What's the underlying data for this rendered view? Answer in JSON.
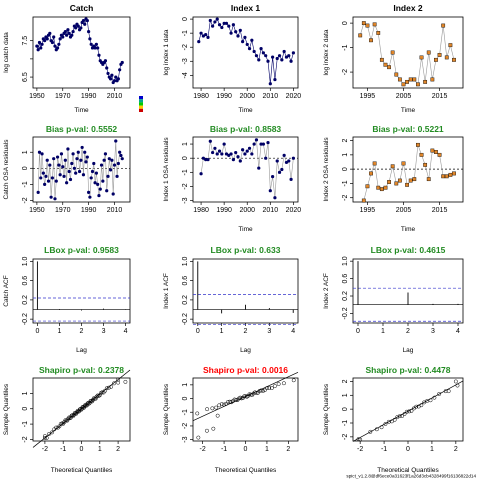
{
  "footer": "spict_v1.2.8@df6ece0a31623f1a26d3cb4328499f16136822d14",
  "colors": {
    "title_green": "#228b22",
    "title_red": "#ff0000",
    "navy": "#000066",
    "orange": "#e0862a",
    "ref_blue": "#3333cc",
    "line_grey": "#999999"
  },
  "chart_data": [
    {
      "type": "line",
      "title": "Catch",
      "title_color": "black",
      "xlabel": "Time",
      "ylabel": "log catch data",
      "xlim": [
        1947,
        2022
      ],
      "ylim": [
        6.2,
        8.15
      ],
      "xticks": [
        1950,
        1970,
        1990,
        2010
      ],
      "yticks": [
        6.5,
        7.0,
        7.5
      ],
      "ytick_labels": [
        "6.5",
        "",
        "7.5"
      ],
      "x": [
        1950,
        1951,
        1952,
        1953,
        1954,
        1955,
        1956,
        1957,
        1958,
        1959,
        1960,
        1961,
        1962,
        1963,
        1964,
        1965,
        1966,
        1967,
        1968,
        1969,
        1970,
        1971,
        1972,
        1973,
        1974,
        1975,
        1976,
        1977,
        1978,
        1979,
        1980,
        1981,
        1982,
        1983,
        1984,
        1985,
        1986,
        1987,
        1988,
        1989,
        1990,
        1991,
        1992,
        1993,
        1994,
        1995,
        1996,
        1997,
        1998,
        1999,
        2000,
        2001,
        2002,
        2003,
        2004,
        2005,
        2006,
        2007,
        2008,
        2009,
        2010,
        2011,
        2012,
        2013,
        2014,
        2015,
        2016
      ],
      "y": [
        7.35,
        7.25,
        7.45,
        7.3,
        7.4,
        7.55,
        7.5,
        7.6,
        7.55,
        7.65,
        7.7,
        7.5,
        7.45,
        7.6,
        7.35,
        7.25,
        7.3,
        7.4,
        7.55,
        7.65,
        7.6,
        7.7,
        7.75,
        7.65,
        7.8,
        7.7,
        7.6,
        7.65,
        7.75,
        7.9,
        7.85,
        7.95,
        7.9,
        7.8,
        7.85,
        8.0,
        8.05,
        7.95,
        8.1,
        8.05,
        7.75,
        7.55,
        7.4,
        7.3,
        7.35,
        7.3,
        7.4,
        7.3,
        7.1,
        6.95,
        6.9,
        6.85,
        6.9,
        6.95,
        6.75,
        6.6,
        6.5,
        6.45,
        6.55,
        6.35,
        6.4,
        6.5,
        6.4,
        6.45,
        6.7,
        6.85,
        6.9
      ],
      "style": "navy-line-points",
      "legend_key": true
    },
    {
      "type": "line",
      "title": "Index 1",
      "title_color": "black",
      "xlabel": "Time",
      "ylabel": "log index 1 data",
      "xlim": [
        1976.5,
        2022
      ],
      "ylim": [
        -4.9,
        0.15
      ],
      "xticks": [
        1980,
        1990,
        2000,
        2010,
        2020
      ],
      "yticks": [
        0,
        -1,
        -2,
        -3,
        -4
      ],
      "ytick_labels": [
        "0",
        "-1",
        "-2",
        "-3",
        "-4"
      ],
      "x": [
        1979,
        1980,
        1981,
        1982,
        1983,
        1984,
        1985,
        1986,
        1987,
        1988,
        1989,
        1990,
        1991,
        1992,
        1993,
        1994,
        1995,
        1996,
        1997,
        1998,
        1999,
        2000,
        2001,
        2002,
        2003,
        2004,
        2005,
        2006,
        2007,
        2008,
        2009,
        2010,
        2011,
        2012,
        2013,
        2014,
        2015,
        2016,
        2017,
        2018,
        2019,
        2020
      ],
      "y": [
        -1.6,
        -1.0,
        -1.2,
        -1.1,
        -1.3,
        -0.1,
        -0.5,
        -0.2,
        0.0,
        -0.4,
        -0.6,
        -0.3,
        -0.3,
        -0.5,
        -1.0,
        -0.4,
        -0.9,
        -1.2,
        -0.8,
        -1.6,
        -1.3,
        -1.8,
        -2.1,
        -1.5,
        -2.3,
        -2.6,
        -2.9,
        -2.1,
        -2.4,
        -2.6,
        -3.0,
        -4.6,
        -2.7,
        -4.3,
        -2.8,
        -2.6,
        -2.9,
        -2.3,
        -2.7,
        -2.6,
        -3.0,
        -2.4
      ],
      "style": "navy-line-points",
      "legend_key": false
    },
    {
      "type": "line",
      "title": "Index 2",
      "title_color": "black",
      "xlabel": "Time",
      "ylabel": "log index 2 data",
      "xlim": [
        1991,
        2021.5
      ],
      "ylim": [
        -2.65,
        0.25
      ],
      "xticks": [
        1995,
        2005,
        2015
      ],
      "yticks": [
        0,
        -1,
        -2
      ],
      "ytick_labels": [
        "0",
        "-1",
        "-2"
      ],
      "x": [
        1993,
        1994,
        1995,
        1996,
        1997,
        1998,
        1999,
        2000,
        2001,
        2002,
        2003,
        2004,
        2005,
        2006,
        2007,
        2008,
        2009,
        2010,
        2011,
        2012,
        2013,
        2014,
        2015,
        2016,
        2017,
        2018,
        2019
      ],
      "y": [
        -0.5,
        0.0,
        -0.1,
        -0.7,
        -0.05,
        -0.4,
        -1.5,
        -1.7,
        -1.8,
        -1.2,
        -2.1,
        -2.3,
        -2.5,
        -2.4,
        -2.3,
        -2.3,
        -2.5,
        -1.4,
        -2.4,
        -1.2,
        -2.3,
        -1.5,
        -1.3,
        -0.1,
        -1.4,
        -0.9,
        -1.5
      ],
      "style": "orange-squares-grey-line",
      "legend_key": false
    },
    {
      "type": "scatter",
      "title": "Bias p-val: 0.5552",
      "title_color": "green",
      "xlabel": "",
      "ylabel": "Catch OSA residuals",
      "xlim": [
        1947,
        2022
      ],
      "ylim": [
        -2.1,
        1.95
      ],
      "xticks": [
        1950,
        1970,
        1990,
        2010
      ],
      "yticks": [
        1,
        0,
        -1,
        -2
      ],
      "ytick_labels": [
        "1",
        "0",
        "-1",
        "-2"
      ],
      "x": [
        1951,
        1952,
        1953,
        1954,
        1955,
        1956,
        1957,
        1958,
        1959,
        1960,
        1961,
        1962,
        1963,
        1964,
        1965,
        1966,
        1967,
        1968,
        1969,
        1970,
        1971,
        1972,
        1973,
        1974,
        1975,
        1976,
        1977,
        1978,
        1979,
        1980,
        1981,
        1982,
        1983,
        1984,
        1985,
        1986,
        1987,
        1988,
        1989,
        1990,
        1991,
        1992,
        1993,
        1994,
        1995,
        1996,
        1997,
        1998,
        1999,
        2000,
        2001,
        2002,
        2003,
        2004,
        2005,
        2006,
        2007,
        2008,
        2009,
        2010,
        2011,
        2012,
        2013,
        2014,
        2015,
        2016
      ],
      "y": [
        -1.5,
        1.0,
        -0.6,
        0.9,
        -0.3,
        -1.0,
        -0.5,
        0.5,
        -0.8,
        0.2,
        -1.8,
        -0.6,
        0.6,
        -1.9,
        -0.8,
        0.7,
        0.2,
        -0.4,
        0.9,
        0.1,
        -0.5,
        0.5,
        -0.9,
        1.2,
        -0.2,
        -0.7,
        0.3,
        0.9,
        0.0,
        -0.3,
        0.6,
        1.0,
        -0.2,
        0.5,
        1.3,
        -0.4,
        1.0,
        0.4,
        0.7,
        -1.5,
        -1.8,
        -0.6,
        -0.2,
        0.3,
        -0.9,
        -0.3,
        -1.0,
        -1.7,
        -1.3,
        0.2,
        -0.8,
        0.5,
        0.9,
        -1.4,
        -0.5,
        0.6,
        -0.1,
        0.5,
        -1.6,
        0.2,
        1.7,
        -0.5,
        0.3,
        1.0,
        0.8,
        0.6
      ],
      "ref_line": 0,
      "style": "navy-points-grey-line",
      "ref": "h"
    },
    {
      "type": "scatter",
      "title": "Bias p-val: 0.8583",
      "title_color": "green",
      "xlabel": "Time",
      "ylabel": "Index 1 OSA residuals",
      "xlim": [
        1976.5,
        2022
      ],
      "ylim": [
        -3.1,
        1.5
      ],
      "xticks": [
        1980,
        1990,
        2000,
        2010,
        2020
      ],
      "yticks": [
        1,
        0,
        -1,
        -2,
        -3
      ],
      "ytick_labels": [
        "1",
        "0",
        "-1",
        "-2",
        "-3"
      ],
      "x": [
        1980,
        1981,
        1982,
        1983,
        1984,
        1985,
        1986,
        1987,
        1988,
        1989,
        1990,
        1991,
        1992,
        1993,
        1994,
        1995,
        1996,
        1997,
        1998,
        1999,
        2000,
        2001,
        2002,
        2003,
        2004,
        2005,
        2006,
        2007,
        2008,
        2009,
        2010,
        2011,
        2012,
        2013,
        2014,
        2015,
        2016,
        2017,
        2018,
        2019,
        2020
      ],
      "y": [
        -1.1,
        0.0,
        -0.1,
        -0.1,
        1.2,
        0.4,
        0.7,
        0.3,
        0.5,
        0.3,
        1.0,
        0.3,
        0.2,
        0.3,
        -0.1,
        0.4,
        0.1,
        -0.2,
        0.6,
        0.3,
        0.5,
        0.7,
        0.3,
        1.0,
        1.3,
        -0.7,
        1.0,
        1.0,
        0.0,
        1.1,
        -2.3,
        -1.3,
        -2.8,
        -0.2,
        -1.0,
        -0.8,
        0.2,
        -0.3,
        -0.2,
        -1.5,
        0.0
      ],
      "ref_line": 0,
      "style": "navy-points-grey-line",
      "ref": "h"
    },
    {
      "type": "scatter",
      "title": "Bias p-val: 0.5221",
      "title_color": "green",
      "xlabel": "Time",
      "ylabel": "Index 2 OSA residuals",
      "xlim": [
        1991,
        2021.5
      ],
      "ylim": [
        -2.3,
        2.25
      ],
      "xticks": [
        1995,
        2005,
        2015
      ],
      "yticks": [
        2,
        1,
        0,
        -1,
        -2
      ],
      "ytick_labels": [
        "2",
        "1",
        "0",
        "-1",
        "-2"
      ],
      "x": [
        1994,
        1995,
        1996,
        1997,
        1998,
        1999,
        2000,
        2001,
        2002,
        2003,
        2004,
        2005,
        2006,
        2007,
        2008,
        2009,
        2010,
        2011,
        2012,
        2013,
        2014,
        2015,
        2016,
        2017,
        2018,
        2019
      ],
      "y": [
        -2.2,
        -1.2,
        -0.3,
        0.4,
        -1.3,
        -1.4,
        -1.3,
        -0.9,
        0.2,
        -1.0,
        -0.8,
        0.4,
        -1.1,
        -0.8,
        -0.7,
        1.7,
        1.0,
        0.3,
        -0.7,
        1.3,
        1.2,
        1.0,
        -0.5,
        -0.5,
        -0.4,
        -0.3
      ],
      "ref_line": 0,
      "style": "orange-squares-grey-line",
      "ref": "h"
    },
    {
      "type": "bar",
      "title": "LBox p-val: 0.9583",
      "title_color": "green",
      "xlabel": "Lag",
      "ylabel": "Catch ACF",
      "xlim": [
        -0.2,
        4.2
      ],
      "ylim": [
        -0.28,
        1.05
      ],
      "xticks": [
        0,
        1,
        2,
        3,
        4
      ],
      "yticks": [
        1.0,
        0.6,
        0.2,
        -0.2
      ],
      "ytick_labels": [
        "1.0",
        "0.6",
        "0.2",
        "-0.2"
      ],
      "lags": [
        0,
        1,
        2,
        3,
        4
      ],
      "acf": [
        1.0,
        0.01,
        -0.02,
        0.02,
        -0.01
      ],
      "ci": 0.24
    },
    {
      "type": "bar",
      "title": "LBox p-val: 0.633",
      "title_color": "green",
      "xlabel": "Lag",
      "ylabel": "Index 1 ACF",
      "xlim": [
        -0.2,
        4.2
      ],
      "ylim": [
        -0.28,
        1.05
      ],
      "xticks": [
        0,
        1,
        2,
        3,
        4
      ],
      "yticks": [
        1.0,
        0.6,
        0.2,
        -0.2
      ],
      "ytick_labels": [
        "1.0",
        "0.6",
        "0.2",
        "-0.2"
      ],
      "lags": [
        0,
        1,
        2,
        3,
        4
      ],
      "acf": [
        1.0,
        -0.08,
        0.1,
        0.03,
        -0.07
      ],
      "ci": 0.31
    },
    {
      "type": "bar",
      "title": "LBox p-val: 0.4615",
      "title_color": "green",
      "xlabel": "Lag",
      "ylabel": "Index 2 ACF",
      "xlim": [
        -0.2,
        4.2
      ],
      "ylim": [
        -0.42,
        1.05
      ],
      "xticks": [
        0,
        1,
        2,
        3,
        4
      ],
      "yticks": [
        1.0,
        0.6,
        0.2,
        -0.2
      ],
      "ytick_labels": [
        "1.0",
        "0.6",
        "0.2",
        "-0.2"
      ],
      "lags": [
        0,
        1,
        2,
        3,
        4
      ],
      "acf": [
        1.0,
        0.0,
        0.28,
        0.02,
        0.02
      ],
      "ci": 0.38
    },
    {
      "type": "scatter",
      "title": "Shapiro p-val: 0.2378",
      "title_color": "green",
      "xlabel": "Theoretical Quantiles",
      "ylabel": "Sample Quantiles",
      "xlim": [
        -2.65,
        2.65
      ],
      "ylim": [
        -2.1,
        2.0
      ],
      "xticks": [
        -2,
        -1,
        0,
        1,
        2
      ],
      "yticks": [
        1,
        0,
        -1,
        -2
      ],
      "ytick_labels": [
        "1",
        "0",
        "-1",
        "-2"
      ],
      "qq_n": 66,
      "qq_scale": 0.92,
      "qq_offset": 0.0,
      "qq_edges": [
        [
          -2.0,
          -1.9
        ],
        [
          -1.9,
          -1.9
        ],
        [
          2.0,
          1.7
        ],
        [
          2.4,
          1.75
        ]
      ],
      "ref_line": {
        "slope": 0.95,
        "intercept": 0.0
      }
    },
    {
      "type": "scatter",
      "title": "Shapiro p-val: 0.0016",
      "title_color": "red",
      "xlabel": "Theoretical Quantiles",
      "ylabel": "Sample Quantiles",
      "xlim": [
        -2.45,
        2.45
      ],
      "ylim": [
        -3.1,
        1.5
      ],
      "xticks": [
        -2,
        -1,
        0,
        1,
        2
      ],
      "yticks": [
        1,
        0,
        -1,
        -2,
        -3
      ],
      "ytick_labels": [
        "1",
        "0",
        "-1",
        "-2",
        "-3"
      ],
      "qq_n": 41,
      "qq_scale": 0.55,
      "qq_offset": 0.15,
      "qq_edges": [
        [
          -2.2,
          -2.85
        ],
        [
          -1.8,
          -2.35
        ],
        [
          -1.5,
          -2.2
        ],
        [
          -1.3,
          -1.25
        ]
      ],
      "ref_line": {
        "slope": 0.72,
        "intercept": 0.15
      }
    },
    {
      "type": "scatter",
      "title": "Shapiro p-val: 0.4478",
      "title_color": "green",
      "xlabel": "Theoretical Quantiles",
      "ylabel": "Sample Quantiles",
      "xlim": [
        -2.3,
        2.3
      ],
      "ylim": [
        -2.3,
        2.25
      ],
      "xticks": [
        -2,
        -1,
        0,
        1,
        2
      ],
      "yticks": [
        2,
        1,
        0,
        -1,
        -2
      ],
      "ytick_labels": [
        "2",
        "1",
        "0",
        "-1",
        "-2"
      ],
      "qq_n": 26,
      "qq_scale": 0.95,
      "qq_offset": -0.2,
      "qq_edges": [
        [
          -2.0,
          -2.2
        ],
        [
          1.7,
          1.3
        ],
        [
          2.0,
          2.0
        ],
        [
          2.2,
          2.3
        ]
      ],
      "ref_line": {
        "slope": 0.95,
        "intercept": -0.15
      }
    }
  ]
}
